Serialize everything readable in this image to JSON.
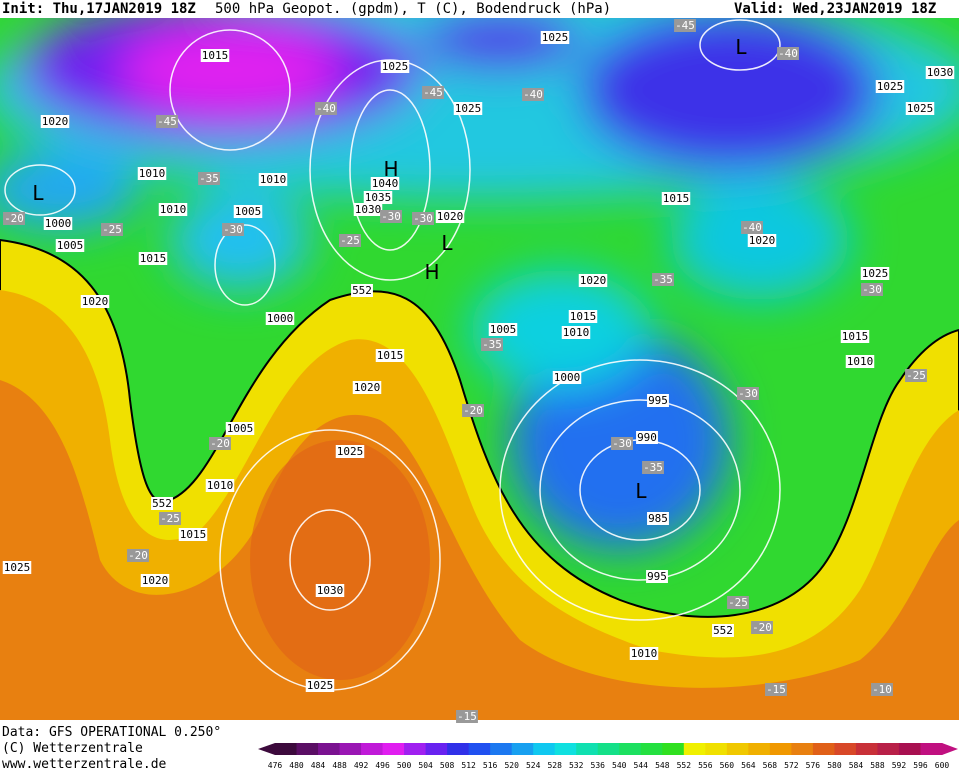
{
  "header": {
    "init": "Init: Thu,17JAN2019 18Z",
    "title": "500 hPa Geopot. (gpdm), T (C), Bodendruck (hPa)",
    "valid": "Valid: Wed,23JAN2019 18Z"
  },
  "map": {
    "pressure_labels": [
      1015,
      1025,
      1025,
      1030,
      1025,
      1025,
      1025,
      1020,
      1010,
      1010,
      1040,
      1035,
      1030,
      1020,
      1010,
      1005,
      1000,
      1005,
      1015,
      1015,
      1020,
      1025,
      1020,
      1015,
      1010,
      1005,
      1020,
      1000,
      1015,
      1020,
      1000,
      1015,
      1010,
      995,
      990,
      1005,
      1010,
      1025,
      985,
      995,
      1015,
      1020,
      1025,
      1030,
      1010,
      1025
    ],
    "temperature_labels": [
      -45,
      -40,
      -45,
      -40,
      -40,
      -45,
      -35,
      -20,
      -25,
      -30,
      -30,
      -30,
      -25,
      -40,
      -30,
      -35,
      -35,
      -25,
      -30,
      -20,
      -20,
      -30,
      -35,
      -25,
      -20,
      -25,
      -20,
      -15,
      -10,
      -15
    ],
    "height_labels": [
      552,
      552,
      552
    ],
    "symbols": [
      "L",
      "L",
      "H",
      "L",
      "H",
      "L"
    ]
  },
  "footer": {
    "data": "Data: GFS OPERATIONAL 0.250°",
    "copyright": "(C) Wetterzentrale",
    "url": "www.wetterzentrale.de"
  },
  "colorbar": {
    "ticks": [
      476,
      480,
      484,
      488,
      492,
      496,
      500,
      504,
      508,
      512,
      516,
      520,
      524,
      528,
      532,
      536,
      540,
      544,
      548,
      552,
      556,
      560,
      564,
      568,
      572,
      576,
      580,
      584,
      588,
      592,
      596,
      600
    ],
    "colors": [
      "#3c0a3c",
      "#5a0e64",
      "#7a1290",
      "#9a16b4",
      "#c01ad8",
      "#e01ef0",
      "#a020f0",
      "#6822f0",
      "#3030e8",
      "#2050f0",
      "#1c78f0",
      "#18a0f0",
      "#10c8f0",
      "#10e0e0",
      "#10e0b0",
      "#14e088",
      "#1ce060",
      "#24e040",
      "#30e020",
      "#f0f000",
      "#f0e000",
      "#f0c800",
      "#f0b000",
      "#f09800",
      "#e88010",
      "#e06018",
      "#d84828",
      "#c83038",
      "#b82048",
      "#a81050",
      "#c01080"
    ]
  }
}
